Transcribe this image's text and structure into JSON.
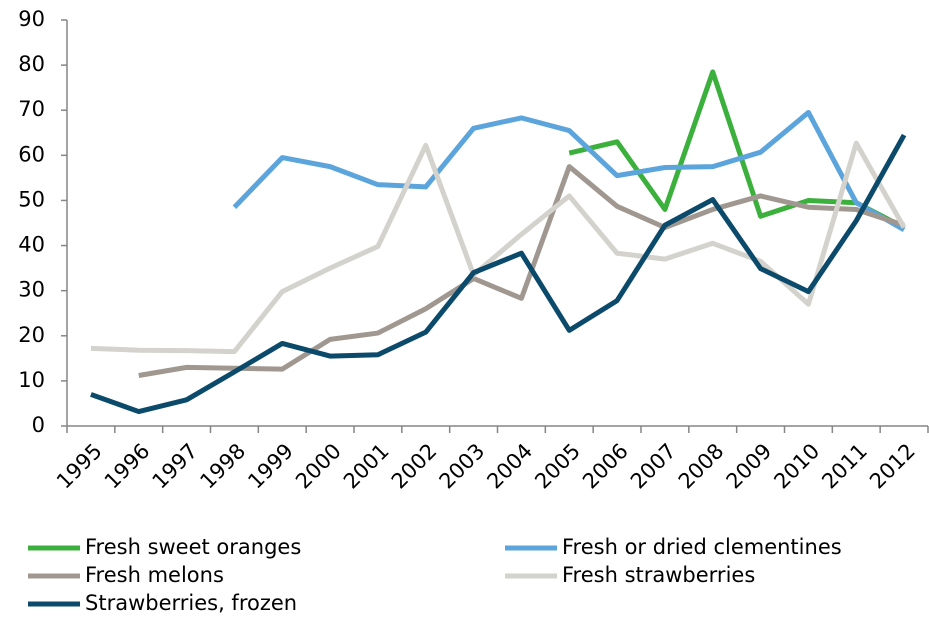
{
  "chart_data": {
    "type": "line",
    "categories": [
      "1995",
      "1996",
      "1997",
      "1998",
      "1999",
      "2000",
      "2001",
      "2002",
      "2003",
      "2004",
      "2005",
      "2006",
      "2007",
      "2008",
      "2009",
      "2010",
      "2011",
      "2012"
    ],
    "ylim": [
      0,
      90
    ],
    "yticks": [
      0,
      10,
      20,
      30,
      40,
      50,
      60,
      70,
      80,
      90
    ],
    "grid": false,
    "legend": "bottom",
    "series": [
      {
        "name": "Fresh sweet oranges",
        "color": "#3cb03c",
        "values": [
          null,
          null,
          null,
          null,
          null,
          null,
          null,
          null,
          null,
          null,
          60.5,
          63,
          48,
          78.5,
          46.5,
          50,
          49.5,
          44
        ]
      },
      {
        "name": "Fresh or dried clementines",
        "color": "#5ca4dc",
        "values": [
          null,
          null,
          null,
          48.5,
          59.5,
          57.5,
          53.5,
          53,
          66,
          68.3,
          65.5,
          55.5,
          57.3,
          57.5,
          60.7,
          69.5,
          49.5,
          43.5
        ]
      },
      {
        "name": "Fresh melons",
        "color": "#a09890",
        "values": [
          null,
          11.2,
          13,
          12.8,
          12.6,
          19.2,
          20.6,
          26,
          32.7,
          28.3,
          57.5,
          48.7,
          44,
          48,
          51,
          48.5,
          48,
          44.5
        ]
      },
      {
        "name": "Fresh strawberries",
        "color": "#d4d2cc",
        "values": [
          17.2,
          16.8,
          16.7,
          16.5,
          29.8,
          35,
          39.8,
          62.2,
          33.5,
          42.5,
          51,
          38.3,
          37,
          40.5,
          36.5,
          27,
          62.7,
          44
        ]
      },
      {
        "name": "Strawberries, frozen",
        "color": "#0b4a6a",
        "values": [
          7,
          3.2,
          5.8,
          12,
          18.3,
          15.5,
          15.8,
          20.8,
          34,
          38.3,
          21.2,
          27.8,
          44.5,
          50.2,
          34.9,
          29.8,
          45.5,
          64.5
        ]
      }
    ]
  }
}
